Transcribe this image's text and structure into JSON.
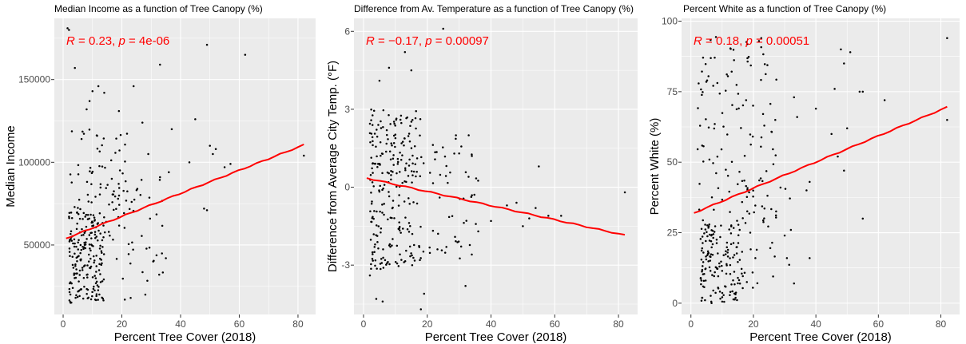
{
  "chart_data": [
    {
      "type": "scatter",
      "title": "Median Income as a function of Tree Canopy (%)",
      "xlabel": "Percent Tree Cover (2018)",
      "ylabel": "Median Income",
      "xlim": [
        -3,
        86
      ],
      "ylim": [
        8000,
        187000
      ],
      "xticks": [
        0,
        20,
        40,
        60,
        80
      ],
      "yticks": [
        50000,
        100000,
        150000
      ],
      "ytick_labels": [
        "50000",
        "100000",
        "150000"
      ],
      "grid": true,
      "annotation": {
        "r": "0.23",
        "p": "4e-06"
      },
      "fit_line": {
        "x": [
          1,
          82
        ],
        "y": [
          54000,
          110500
        ]
      },
      "point_color": "#000000",
      "fit_color": "#ff0000",
      "seed": 11,
      "points": [
        [
          1.5,
          181000
        ],
        [
          2,
          180000
        ],
        [
          4,
          157000
        ],
        [
          8,
          132000
        ],
        [
          9,
          137000
        ],
        [
          10,
          143000
        ],
        [
          12,
          146000
        ],
        [
          14,
          142000
        ],
        [
          19,
          131000
        ],
        [
          24,
          146000
        ],
        [
          27,
          124000
        ],
        [
          33,
          159000
        ],
        [
          37,
          120000
        ],
        [
          45,
          126000
        ],
        [
          49,
          171000
        ],
        [
          62,
          165000
        ],
        [
          50,
          110000
        ],
        [
          51,
          105000
        ],
        [
          52,
          108000
        ],
        [
          55,
          97000
        ],
        [
          57,
          99000
        ],
        [
          43,
          100000
        ],
        [
          49,
          71000
        ],
        [
          48,
          72000
        ],
        [
          82,
          104000
        ],
        [
          33,
          91000
        ],
        [
          36,
          94000
        ],
        [
          29,
          105000
        ],
        [
          28,
          20000
        ],
        [
          35,
          42000
        ],
        [
          23,
          18000
        ],
        [
          21,
          17000
        ]
      ],
      "clusters": [
        {
          "n": 190,
          "x": [
            2,
            14
          ],
          "y": [
            15000,
            70000
          ]
        },
        {
          "n": 75,
          "x": [
            2,
            22
          ],
          "y": [
            55000,
            120000
          ]
        },
        {
          "n": 45,
          "x": [
            14,
            34
          ],
          "y": [
            25000,
            90000
          ]
        }
      ]
    },
    {
      "type": "scatter",
      "title": "Difference from Av. Temperature as a function of Tree Canopy (%)",
      "xlabel": "Percent Tree Cover (2018)",
      "ylabel": "Difference from Average City Temp. (°F)",
      "xlim": [
        -3,
        86
      ],
      "ylim": [
        -4.9,
        6.5
      ],
      "xticks": [
        0,
        20,
        40,
        60,
        80
      ],
      "yticks": [
        -3,
        0,
        3,
        6
      ],
      "ytick_labels": [
        "-3",
        "0",
        "3",
        "6"
      ],
      "grid": true,
      "annotation": {
        "r": "−0.17",
        "p": "0.00097"
      },
      "fit_line": {
        "x": [
          1,
          82
        ],
        "y": [
          0.35,
          -1.85
        ]
      },
      "point_color": "#000000",
      "fit_color": "#ff0000",
      "seed": 23,
      "points": [
        [
          25,
          6.1
        ],
        [
          13,
          5.2
        ],
        [
          5,
          4.1
        ],
        [
          8,
          4.6
        ],
        [
          15,
          4.5
        ],
        [
          29,
          2.0
        ],
        [
          30,
          1.3
        ],
        [
          34,
          1.2
        ],
        [
          33,
          2.0
        ],
        [
          36,
          -1.7
        ],
        [
          40,
          -1.3
        ],
        [
          45,
          -0.7
        ],
        [
          48,
          -0.6
        ],
        [
          50,
          -1.5
        ],
        [
          52,
          -1.2
        ],
        [
          54,
          -0.8
        ],
        [
          55,
          0.8
        ],
        [
          58,
          -1.1
        ],
        [
          62,
          -1.1
        ],
        [
          82,
          -0.2
        ],
        [
          4,
          -4.3
        ],
        [
          6,
          -4.4
        ],
        [
          18,
          -4.7
        ],
        [
          19,
          -4.1
        ],
        [
          32,
          -3.8
        ],
        [
          2,
          -3.4
        ],
        [
          26,
          -2.3
        ]
      ],
      "clusters": [
        {
          "n": 230,
          "x": [
            2,
            18
          ],
          "y": [
            -3.2,
            3.0
          ]
        },
        {
          "n": 60,
          "x": [
            14,
            36
          ],
          "y": [
            -2.8,
            2.0
          ]
        }
      ]
    },
    {
      "type": "scatter",
      "title": "Percent White as a function of Tree Canopy (%)",
      "xlabel": "Percent Tree Cover (2018)",
      "ylabel": "Percent White (%)",
      "xlim": [
        -3,
        86
      ],
      "ylim": [
        -4,
        101
      ],
      "xticks": [
        0,
        20,
        40,
        60,
        80
      ],
      "yticks": [
        0,
        25,
        50,
        75,
        100
      ],
      "ytick_labels": [
        "0",
        "25",
        "50",
        "75",
        "100"
      ],
      "grid": true,
      "annotation": {
        "r": "0.18",
        "p": "0.00051"
      },
      "fit_line": {
        "x": [
          1,
          82
        ],
        "y": [
          32,
          69.5
        ]
      },
      "point_color": "#000000",
      "fit_color": "#ff0000",
      "seed": 37,
      "points": [
        [
          48,
          90
        ],
        [
          49,
          85
        ],
        [
          51,
          89
        ],
        [
          54,
          75
        ],
        [
          55,
          75
        ],
        [
          62,
          72
        ],
        [
          82,
          94
        ],
        [
          82,
          65
        ],
        [
          46,
          76
        ],
        [
          47,
          52
        ],
        [
          50,
          62
        ],
        [
          49,
          47
        ],
        [
          55,
          30
        ],
        [
          37,
          40
        ],
        [
          38,
          43
        ],
        [
          40,
          69
        ],
        [
          33,
          73
        ],
        [
          34,
          66
        ],
        [
          30,
          24
        ],
        [
          32,
          26
        ],
        [
          33,
          7
        ],
        [
          38,
          16
        ],
        [
          45,
          60
        ],
        [
          27,
          65
        ]
      ],
      "clusters": [
        {
          "n": 150,
          "x": [
            3,
            16
          ],
          "y": [
            0,
            28
          ]
        },
        {
          "n": 110,
          "x": [
            2,
            28
          ],
          "y": [
            28,
            95
          ]
        },
        {
          "n": 40,
          "x": [
            16,
            32
          ],
          "y": [
            5,
            45
          ]
        }
      ]
    }
  ]
}
